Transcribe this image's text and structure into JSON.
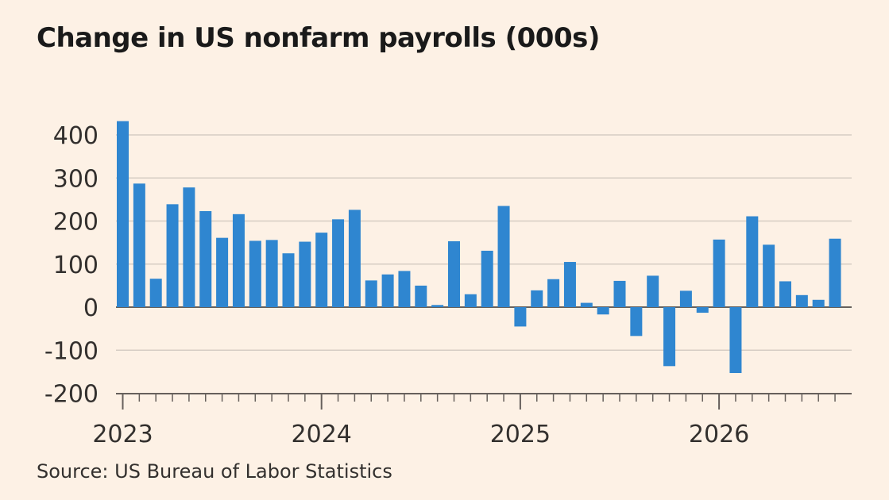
{
  "title": "Change in US nonfarm payrolls (000s)",
  "source": "Source: US Bureau of Labor Statistics",
  "colors": {
    "background": "#fdf1e5",
    "bar": "#2f86d0",
    "grid": "#d6cdc4",
    "axis": "#66605c",
    "text": "#33302e"
  },
  "chart_data": {
    "type": "bar",
    "title": "Change in US nonfarm payrolls (000s)",
    "xlabel": "",
    "ylabel": "",
    "ylim": [
      -200,
      430
    ],
    "yticks": [
      -200,
      -100,
      0,
      100,
      200,
      300,
      400
    ],
    "ytick_labels": [
      "-200",
      "-100",
      "0",
      "100",
      "200",
      "300",
      "400"
    ],
    "grid": true,
    "x_major_labels": [
      {
        "label": "2023",
        "index": 0
      },
      {
        "label": "2024",
        "index": 12
      },
      {
        "label": "2025",
        "index": 24
      },
      {
        "label": "2026",
        "index": 36
      }
    ],
    "categories": [
      "2023-01",
      "2023-02",
      "2023-03",
      "2023-04",
      "2023-05",
      "2023-06",
      "2023-07",
      "2023-08",
      "2023-09",
      "2023-10",
      "2023-11",
      "2023-12",
      "2024-01",
      "2024-02",
      "2024-03",
      "2024-04",
      "2024-05",
      "2024-06",
      "2024-07",
      "2024-08",
      "2024-09",
      "2024-10",
      "2024-11",
      "2024-12",
      "2025-01",
      "2025-02",
      "2025-03",
      "2025-04",
      "2025-05",
      "2025-06",
      "2025-07",
      "2025-08",
      "2025-09",
      "2025-10",
      "2025-11",
      "2025-12",
      "2026-01",
      "2026-02",
      "2026-03",
      "2026-04",
      "2026-05",
      "2026-06",
      "2026-07",
      "2026-08"
    ],
    "values": [
      432,
      287,
      66,
      239,
      278,
      223,
      161,
      216,
      154,
      156,
      125,
      152,
      173,
      204,
      226,
      62,
      76,
      84,
      50,
      5,
      153,
      30,
      131,
      235,
      -45,
      39,
      65,
      105,
      10,
      -17,
      61,
      -67,
      73,
      -137,
      38,
      -13,
      157,
      -153,
      211,
      145,
      60,
      28,
      17,
      159
    ]
  }
}
